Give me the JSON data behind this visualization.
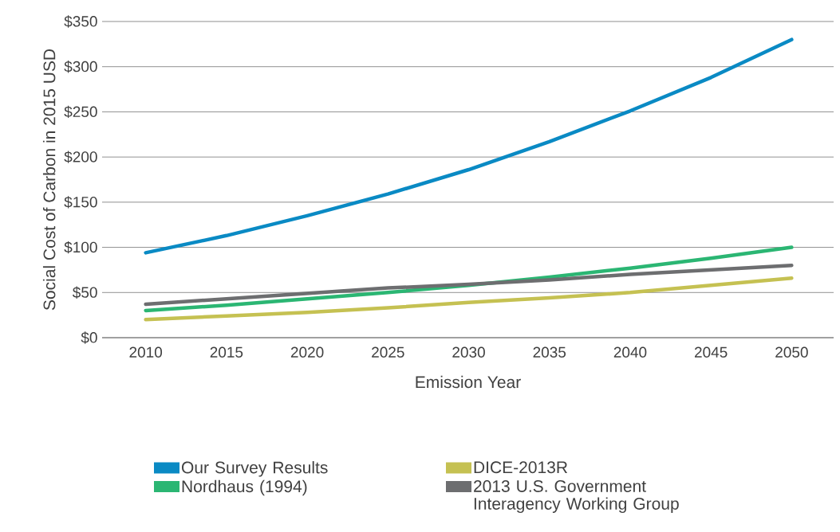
{
  "chart_data": {
    "type": "line",
    "xlabel": "Emission Year",
    "ylabel": "Social Cost of Carbon in 2015 USD",
    "x": [
      2010,
      2015,
      2020,
      2025,
      2030,
      2035,
      2040,
      2045,
      2050
    ],
    "series": [
      {
        "name": "Our Survey Results",
        "color": "#0a8ac4",
        "values": [
          94,
          113,
          135,
          159,
          186,
          217,
          251,
          288,
          330
        ]
      },
      {
        "name": "Nordhaus (1994)",
        "color": "#2bb673",
        "values": [
          30,
          36,
          43,
          50,
          58,
          67,
          77,
          88,
          100
        ]
      },
      {
        "name": "DICE-2013R",
        "color": "#c5c152",
        "values": [
          20,
          24,
          28,
          33,
          39,
          44,
          50,
          58,
          66
        ]
      },
      {
        "name": "2013 U.S. Government Interagency Working Group",
        "color": "#6d6e70",
        "values": [
          37,
          43,
          49,
          55,
          59,
          64,
          70,
          75,
          80
        ]
      }
    ],
    "xlim": [
      2007.3,
      2052.6
    ],
    "ylim": [
      0,
      350
    ],
    "xticks": [
      2010,
      2015,
      2020,
      2025,
      2030,
      2035,
      2040,
      2045,
      2050
    ],
    "yticks": [
      {
        "value": 0,
        "label": "$0"
      },
      {
        "value": 50,
        "label": "$50"
      },
      {
        "value": 100,
        "label": "$100"
      },
      {
        "value": 150,
        "label": "$150"
      },
      {
        "value": 200,
        "label": "$200"
      },
      {
        "value": 250,
        "label": "$250"
      },
      {
        "value": 300,
        "label": "$300"
      },
      {
        "value": 350,
        "label": "$350"
      }
    ],
    "grid": "y",
    "legend": "bottom",
    "marker": "none",
    "line_style": "solid"
  }
}
